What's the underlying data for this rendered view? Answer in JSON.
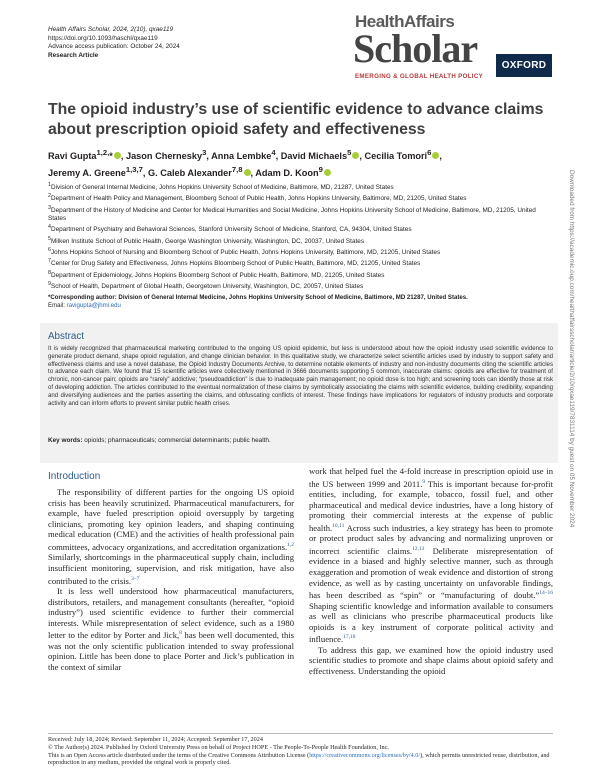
{
  "header": {
    "journal_line": "Health Affairs Scholar, 2024, 2(10), qxae119",
    "doi_line": "https://doi.org/10.1093/haschl/qxae119",
    "pub_line": "Advance access publication: October 24, 2024",
    "article_type": "Research Article"
  },
  "logo": {
    "health_affairs": "HealthAffairs",
    "scholar": "Scholar",
    "tagline": "EMERGING & GLOBAL HEALTH POLICY",
    "publisher": "OXFORD"
  },
  "title": "The opioid industry’s use of scientific evidence to advance claims about prescription opioid safety and effectiveness",
  "authors": {
    "line1": "Ravi Gupta",
    "line1_sup": "1,2,",
    "line1_rest": ", Jason Chernesky",
    "a2_sup": "3",
    "a3": ", Anna Lembke",
    "a3_sup": "4",
    "a4": ", David Michaels",
    "a4_sup": "5",
    "a5": ", Cecilia Tomori",
    "a5_sup": "6",
    "a6": "Jeremy A. Greene",
    "a6_sup": "1,3,7",
    "a7": ", G. Caleb Alexander",
    "a7_sup": "7,8",
    "a8": ", Adam D. Koon",
    "a8_sup": "9"
  },
  "affiliations": [
    {
      "n": "1",
      "text": "Division of General Internal Medicine, Johns Hopkins University School of Medicine, Baltimore, MD, 21287, United States"
    },
    {
      "n": "2",
      "text": "Department of Health Policy and Management, Bloomberg School of Public Health, Johns Hopkins University, Baltimore, MD, 21205, United States"
    },
    {
      "n": "3",
      "text": "Department of the History of Medicine and Center for Medical Humanities and Social Medicine, Johns Hopkins University School of Medicine, Baltimore, MD, 21205, United States"
    },
    {
      "n": "4",
      "text": "Department of Psychiatry and Behavioral Sciences, Stanford University School of Medicine, Stanford, CA, 94304, United States"
    },
    {
      "n": "5",
      "text": "Milken Institute School of Public Health, George Washington University, Washington, DC, 20037, United States"
    },
    {
      "n": "6",
      "text": "Johns Hopkins School of Nursing and Bloomberg School of Public Health, Johns Hopkins University, Baltimore, MD, 21205, United States"
    },
    {
      "n": "7",
      "text": "Center for Drug Safety and Effectiveness, Johns Hopkins Bloomberg School of Public Health, Baltimore, MD, 21205, United States"
    },
    {
      "n": "8",
      "text": "Department of Epidemiology, Johns Hopkins Bloomberg School of Public Health, Baltimore, MD, 21205, United States"
    },
    {
      "n": "9",
      "text": "School of Health, Department of Global Health, Georgetown University, Washington, DC, 20057, United States"
    }
  ],
  "corresponding": {
    "text": "*Corresponding author: Division of General Internal Medicine, Johns Hopkins University School of Medicine, Baltimore, MD 21287, United States.",
    "email_label": "Email:",
    "email": "ravigupta@jhmi.edu"
  },
  "abstract": {
    "heading": "Abstract",
    "text": "It is widely recognized that pharmaceutical marketing contributed to the ongoing US opioid epidemic, but less is understood about how the opioid industry used scientific evidence to generate product demand, shape opioid regulation, and change clinician behavior. In this qualitative study, we characterize select scientific articles used by industry to support safety and effectiveness claims and use a novel database, the Opioid Industry Documents Archive, to determine notable elements of industry and non-industry documents citing the scientific articles to advance each claim. We found that 15 scientific articles were collectively mentioned in 3666 documents supporting 5 common, inaccurate claims: opioids are effective for treatment of chronic, non-cancer pain; opioids are “rarely” addictive; “pseudoaddiction” is due to inadequate pain management; no opioid dose is too high; and screening tools can identify those at risk of developing addiction. The articles contributed to the eventual normalization of these claims by symbolically associating the claims with scientific evidence, building credibility, expanding and diversifying audiences and the parties asserting the claims, and obfuscating conflicts of interest. These findings have implications for regulators of industry products and corporate activity and can inform efforts to prevent similar public health crises.",
    "keywords_label": "Key words:",
    "keywords": "opioids; pharmaceuticals; commercial determinants; public health."
  },
  "intro": {
    "heading": "Introduction",
    "p1": "The responsibility of different parties for the ongoing US opioid crisis has been heavily scrutinized. Pharmaceutical manufacturers, for example, have fueled prescription opioid oversupply by targeting clinicians, promoting key opinion leaders, and shaping continuing medical education (CME) and the activities of health professional pain committees, advocacy organizations, and accreditation organizations.",
    "p1_ref": "1,2",
    "p1b": " Similarly, shortcomings in the pharmaceutical supply chain, including insufficient monitoring, supervision, and risk mitigation, have also contributed to the crisis.",
    "p1b_ref": "3–7",
    "p2": "It is less well understood how pharmaceutical manufacturers, distributors, retailers, and management consultants (hereafter, “opioid industry”) used scientific evidence to further their commercial interests. While misrepresentation of select evidence, such as a 1980 letter to the editor by Porter and Jick,",
    "p2_ref": "8",
    "p2b": " has been well documented, this was not the only scientific publication intended to sway professional opinion. Little has been done to place Porter and Jick’s publication in the context of similar",
    "c2_p1": "work that helped fuel the 4-fold increase in prescription opioid use in the US between 1999 and 2011.",
    "c2_p1_ref": "9",
    "c2_p1b": " This is important because for-profit entities, including, for example, tobacco, fossil fuel, and other pharmaceutical and medical device industries, have a long history of promoting their commercial interests at the expense of public health.",
    "c2_p1b_ref": "10,11",
    "c2_p1c": " Across such industries, a key strategy has been to promote or protect product sales by advancing and normalizing unproven or incorrect scientific claims.",
    "c2_p1c_ref": "12,13",
    "c2_p1d": " Deliberate misrepresentation of evidence in a biased and highly selective manner, such as through exaggeration and promotion of weak evidence and distortion of strong evidence, as well as by casting uncertainty on unfavorable findings, has been described as “spin” or “manufacturing of doubt.”",
    "c2_p1d_ref": "14–16",
    "c2_p1e": " Shaping scientific knowledge and information available to consumers as well as clinicians who prescribe pharmaceutical products like opioids is a key instrument of corporate political activity and influence.",
    "c2_p1e_ref": "17,18",
    "c2_p2": "To address this gap, we examined how the opioid industry used scientific studies to promote and shape claims about opioid safety and effectiveness. Understanding the opioid"
  },
  "footer": {
    "received": "Received: July 18, 2024; Revised: September 11, 2024; Accepted: September 17, 2024",
    "copyright": "© The Author(s) 2024. Published by Oxford University Press on behalf of Project HOPE - The People-To-People Health Foundation, Inc.",
    "license_a": "This is an Open Access article distributed under the terms of the Creative Commons Attribution License (",
    "license_link": "https://creativecommons.org/licenses/by/4.0/",
    "license_b": "), which permits unrestricted reuse, distribution, and reproduction in any medium, provided the original work is properly cited."
  },
  "side_note": "Downloaded from https://academic.oup.com/healthaffairsscholar/article/2/10/qxae119/7831114 by guest on 05 November 2024"
}
